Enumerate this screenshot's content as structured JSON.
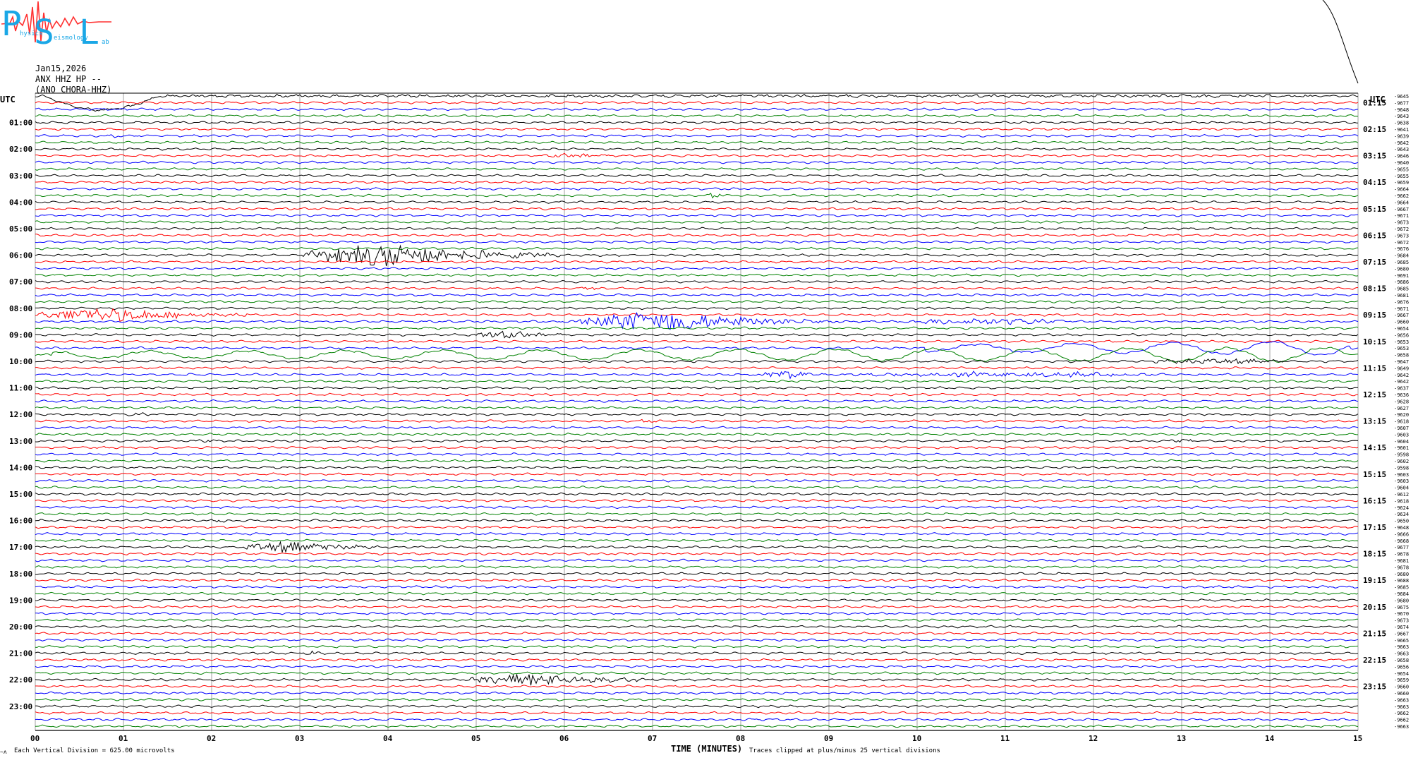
{
  "logo": {
    "text": "Physics Seismology Lab",
    "letters": [
      "P",
      "S",
      "L"
    ],
    "small_words": [
      "hysics",
      "eismology",
      "ab"
    ],
    "colors": {
      "letters": "#1aa7e6",
      "wave": "#ff3030"
    }
  },
  "header": {
    "date": "Jan15,2026",
    "channel": "ANX HHZ HP --",
    "station": "(ANO CHORA-HHZ)"
  },
  "footer": {
    "scale_note": "Each Vertical Division =  625.00 microvolts",
    "clip_note": "Traces clipped at plus/minus 25 vertical divisions",
    "corner_mark": "~ʌ"
  },
  "colors": {
    "background": "#ffffff",
    "grid": "#8a8a8a",
    "frame": "#000000",
    "cycle": [
      "#000000",
      "#ff0000",
      "#0000ff",
      "#008000"
    ]
  },
  "chart_data": {
    "type": "line",
    "title": "Jan15,2026",
    "xlabel": "TIME (MINUTES)",
    "ylabel": "",
    "xlim": [
      0,
      15
    ],
    "x_ticks": [
      "00",
      "01",
      "02",
      "03",
      "04",
      "05",
      "06",
      "07",
      "08",
      "09",
      "10",
      "11",
      "12",
      "13",
      "14",
      "15"
    ],
    "left_axis_title": "UTC",
    "right_axis_title": "UTC",
    "left_labels": [
      "01:00",
      "02:00",
      "03:00",
      "04:00",
      "05:00",
      "06:00",
      "07:00",
      "08:00",
      "09:00",
      "10:00",
      "11:00",
      "12:00",
      "13:00",
      "14:00",
      "15:00",
      "16:00",
      "17:00",
      "18:00",
      "19:00",
      "20:00",
      "21:00",
      "22:00",
      "23:00"
    ],
    "right_labels": [
      "01:15",
      "02:15",
      "03:15",
      "04:15",
      "05:15",
      "06:15",
      "07:15",
      "08:15",
      "09:15",
      "10:15",
      "11:15",
      "12:15",
      "13:15",
      "14:15",
      "15:15",
      "16:15",
      "17:15",
      "18:15",
      "19:15",
      "20:15",
      "21:15",
      "22:15",
      "23:15"
    ],
    "trace_count": 96,
    "trace_minutes": 15,
    "color_cycle": [
      "black",
      "red",
      "blue",
      "green"
    ],
    "row_offsets": [
      "-9645",
      "-9677",
      "-9648",
      "-9643",
      "-9638",
      "-9641",
      "-9639",
      "-9642",
      "-9643",
      "-9646",
      "-9640",
      "-9655",
      "-9655",
      "-9659",
      "-9664",
      "-9662",
      "-9664",
      "-9667",
      "-9671",
      "-9673",
      "-9672",
      "-9673",
      "-9672",
      "-9676",
      "-9684",
      "-9685",
      "-9680",
      "-9691",
      "-9686",
      "-9685",
      "-9681",
      "-9676",
      "-9671",
      "-9667",
      "-9660",
      "-9654",
      "-9656",
      "-9653",
      "-9653",
      "-9658",
      "-9647",
      "-9649",
      "-9642",
      "-9642",
      "-9637",
      "-9636",
      "-9628",
      "-9627",
      "-9620",
      "-9618",
      "-9607",
      "-9603",
      "-9604",
      "-9601",
      "-9598",
      "-9602",
      "-9598",
      "-9603",
      "-9603",
      "-9604",
      "-9612",
      "-9618",
      "-9624",
      "-9634",
      "-9650",
      "-9648",
      "-9666",
      "-9668",
      "-9677",
      "-9678",
      "-9681",
      "-9678",
      "-9680",
      "-9688",
      "-9685",
      "-9684",
      "-9680",
      "-9675",
      "-9670",
      "-9673",
      "-9674",
      "-9667",
      "-9665",
      "-9663",
      "-9663",
      "-9658",
      "-9656",
      "-9654",
      "-9659",
      "-9660",
      "-9660",
      "-9663",
      "-9663",
      "-9662",
      "-9662",
      "-9663"
    ],
    "events": [
      {
        "row": 0,
        "start_min": 0.1,
        "end_min": 1.4,
        "amp": 20,
        "freq": 0.4,
        "shape": "dip"
      },
      {
        "row": 0,
        "start_min": 0.6,
        "end_min": 14.5,
        "amp": 1.2,
        "freq": 4,
        "shape": "noise"
      },
      {
        "row": 6,
        "start_min": 0.8,
        "end_min": 1.0,
        "amp": 2,
        "freq": 6,
        "shape": "burst"
      },
      {
        "row": 9,
        "start_min": 5.7,
        "end_min": 6.6,
        "amp": 2,
        "freq": 6,
        "shape": "burst"
      },
      {
        "row": 15,
        "start_min": 7.6,
        "end_min": 7.8,
        "amp": 4,
        "freq": 6,
        "shape": "burst"
      },
      {
        "row": 24,
        "start_min": 3.0,
        "end_min": 6.0,
        "amp": 16,
        "freq": 8,
        "shape": "quake"
      },
      {
        "row": 29,
        "start_min": 6.1,
        "end_min": 6.5,
        "amp": 2,
        "freq": 6,
        "shape": "burst"
      },
      {
        "row": 33,
        "start_min": 0.0,
        "end_min": 2.4,
        "amp": 10,
        "freq": 8,
        "shape": "quake"
      },
      {
        "row": 34,
        "start_min": 6.1,
        "end_min": 9.1,
        "amp": 14,
        "freq": 8,
        "shape": "quake"
      },
      {
        "row": 34,
        "start_min": 9.7,
        "end_min": 11.9,
        "amp": 4,
        "freq": 8,
        "shape": "burst"
      },
      {
        "row": 36,
        "start_min": 4.9,
        "end_min": 6.1,
        "amp": 5,
        "freq": 5,
        "shape": "quake"
      },
      {
        "row": 39,
        "start_min": 0.2,
        "end_min": 14.9,
        "amp": 10,
        "freq": 0.9,
        "shape": "swell"
      },
      {
        "row": 38,
        "start_min": 10.1,
        "end_min": 14.9,
        "amp": 10,
        "freq": 0.9,
        "shape": "swell"
      },
      {
        "row": 40,
        "start_min": 12.5,
        "end_min": 14.3,
        "amp": 3,
        "freq": 6,
        "shape": "burst"
      },
      {
        "row": 42,
        "start_min": 8.1,
        "end_min": 8.9,
        "amp": 5,
        "freq": 8,
        "shape": "burst"
      },
      {
        "row": 42,
        "start_min": 8.9,
        "end_min": 13.0,
        "amp": 3,
        "freq": 8,
        "shape": "burst"
      },
      {
        "row": 48,
        "start_min": 1.0,
        "end_min": 1.3,
        "amp": 2,
        "freq": 6,
        "shape": "burst"
      },
      {
        "row": 49,
        "start_min": 6.8,
        "end_min": 7.1,
        "amp": 2,
        "freq": 6,
        "shape": "burst"
      },
      {
        "row": 52,
        "start_min": 1.8,
        "end_min": 2.1,
        "amp": 2,
        "freq": 6,
        "shape": "burst"
      },
      {
        "row": 52,
        "start_min": 12.8,
        "end_min": 13.2,
        "amp": 2,
        "freq": 6,
        "shape": "burst"
      },
      {
        "row": 64,
        "start_min": 2.0,
        "end_min": 2.3,
        "amp": 2,
        "freq": 6,
        "shape": "burst"
      },
      {
        "row": 68,
        "start_min": 2.3,
        "end_min": 4.0,
        "amp": 8,
        "freq": 8,
        "shape": "quake"
      },
      {
        "row": 84,
        "start_min": 3.0,
        "end_min": 3.3,
        "amp": 3,
        "freq": 6,
        "shape": "burst"
      },
      {
        "row": 88,
        "start_min": 4.9,
        "end_min": 7.0,
        "amp": 9,
        "freq": 8,
        "shape": "quake"
      }
    ],
    "grid": true,
    "legend": "none"
  }
}
